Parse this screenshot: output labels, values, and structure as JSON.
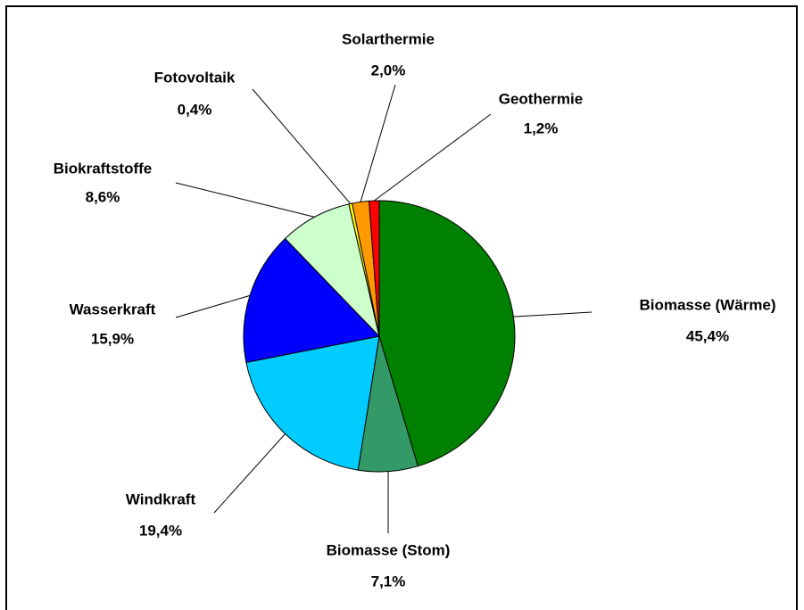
{
  "chart_data": {
    "type": "pie",
    "categories": [
      "Biomasse (Wärme)",
      "Biomasse (Stom)",
      "Windkraft",
      "Wasserkraft",
      "Biokraftstoffe",
      "Fotovoltaik",
      "Solarthermie",
      "Geothermie"
    ],
    "values": [
      45.4,
      7.1,
      19.4,
      15.9,
      8.6,
      0.4,
      2.0,
      1.2
    ],
    "value_labels": [
      "45,4%",
      "7,1%",
      "19,4%",
      "15,9%",
      "8,6%",
      "0,4%",
      "2,0%",
      "1,2%"
    ],
    "colors": [
      "#008000",
      "#339966",
      "#00ccff",
      "#0000ff",
      "#ccffcc",
      "#ffff00",
      "#ff9900",
      "#ff0000"
    ]
  }
}
